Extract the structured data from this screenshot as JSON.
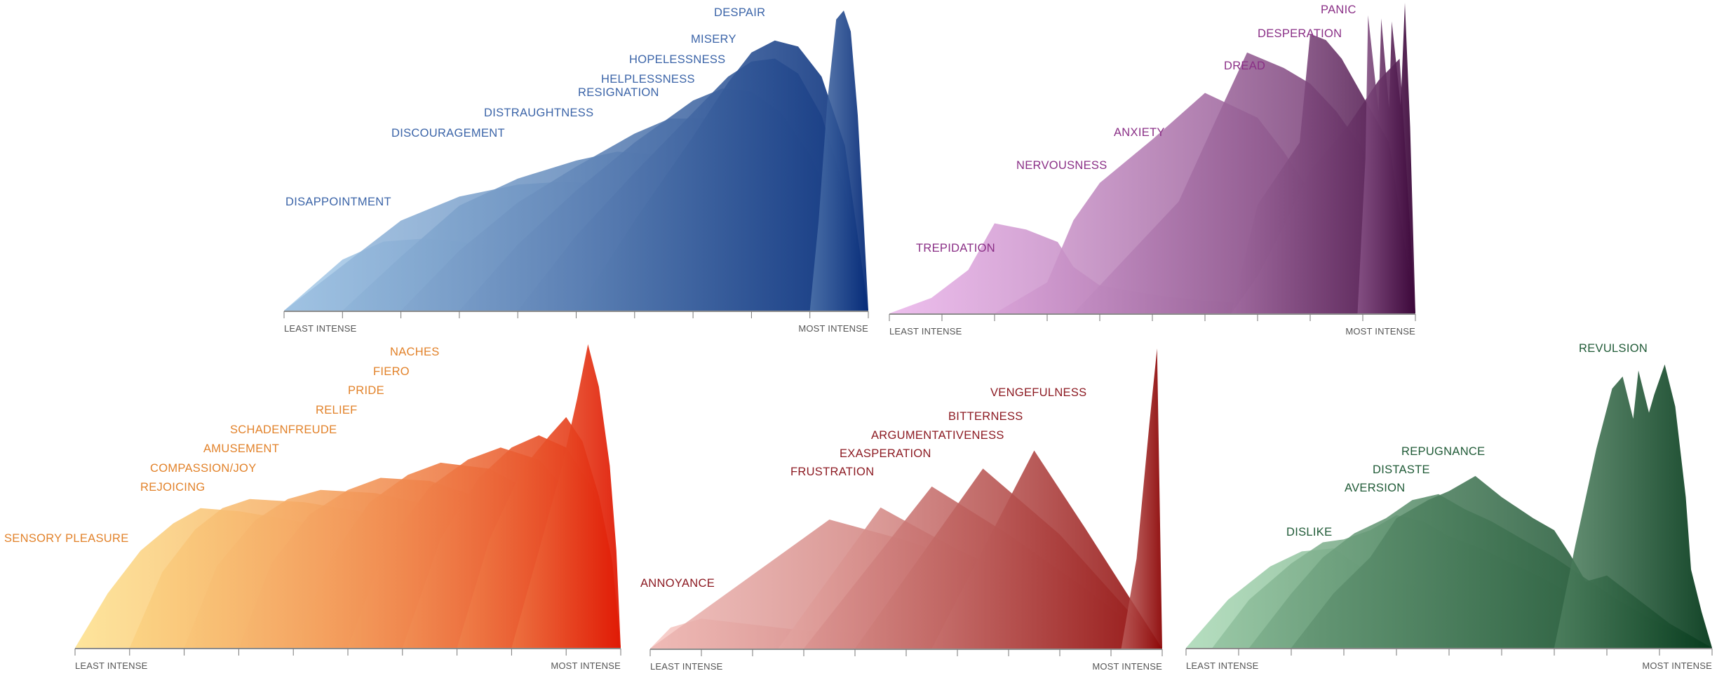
{
  "chart_data": [
    {
      "type": "area",
      "key": "sadness",
      "colors": [
        "#a9cdea",
        "#062b78"
      ],
      "label_color": "#3b64a8",
      "axis_start": "LEAST INTENSE",
      "axis_end": "MOST INTENSE",
      "x_range": [
        0,
        10
      ],
      "y_range": [
        0,
        10
      ],
      "series": [
        {
          "name": "DISAPPOINTMENT",
          "x": [
            0.0,
            1.0,
            1.7,
            2.4,
            3.0,
            4.0,
            5.0,
            6.0,
            7.0,
            8.0,
            9.0,
            10.0
          ],
          "y": [
            0.0,
            1.7,
            2.3,
            2.4,
            2.3,
            2.0,
            1.7,
            1.3,
            0.9,
            0.6,
            0.3,
            0.0
          ]
        },
        {
          "name": "DISCOURAGEMENT",
          "x": [
            0.0,
            1.0,
            2.0,
            3.0,
            4.0,
            4.8,
            5.5,
            6.5,
            7.5,
            8.5,
            9.3,
            10.0
          ],
          "y": [
            0.0,
            1.5,
            3.0,
            3.8,
            4.2,
            4.3,
            4.2,
            3.6,
            2.8,
            1.8,
            0.9,
            0.0
          ]
        },
        {
          "name": "DISTRAUGHTNESS",
          "x": [
            1.0,
            2.0,
            3.0,
            4.0,
            5.0,
            5.7,
            6.4,
            7.2,
            8.0,
            8.8,
            9.5,
            10.0
          ],
          "y": [
            0.0,
            1.8,
            3.5,
            4.4,
            5.0,
            5.3,
            5.2,
            4.6,
            3.8,
            2.6,
            1.3,
            0.0
          ]
        },
        {
          "name": "RESIGNATION",
          "x": [
            2.0,
            3.0,
            4.0,
            5.0,
            6.0,
            6.6,
            7.2,
            7.8,
            8.5,
            9.1,
            9.6,
            10.0
          ],
          "y": [
            0.0,
            2.0,
            3.6,
            4.8,
            5.9,
            6.4,
            6.4,
            5.9,
            4.9,
            3.5,
            1.8,
            0.0
          ]
        },
        {
          "name": "HELPLESSNESS",
          "x": [
            3.0,
            4.0,
            5.0,
            6.0,
            7.0,
            7.5,
            8.0,
            8.5,
            9.0,
            9.5,
            10.0
          ],
          "y": [
            0.0,
            2.2,
            4.0,
            5.6,
            7.0,
            7.4,
            7.3,
            6.6,
            5.2,
            3.0,
            0.0
          ]
        },
        {
          "name": "HOPELESSNESS",
          "x": [
            4.0,
            5.0,
            6.0,
            7.0,
            7.6,
            8.0,
            8.4,
            8.8,
            9.2,
            9.6,
            10.0
          ],
          "y": [
            0.0,
            2.5,
            4.6,
            6.6,
            7.8,
            8.3,
            8.4,
            7.9,
            6.5,
            4.0,
            0.0
          ]
        },
        {
          "name": "MISERY",
          "x": [
            5.0,
            6.0,
            7.0,
            7.6,
            8.0,
            8.4,
            8.8,
            9.2,
            9.6,
            10.0
          ],
          "y": [
            0.0,
            3.0,
            5.8,
            7.6,
            8.6,
            9.0,
            8.8,
            7.8,
            5.5,
            0.0
          ]
        },
        {
          "name": "DESPAIR",
          "x": [
            9.0,
            9.15,
            9.3,
            9.45,
            9.58,
            9.7,
            9.82,
            9.92,
            10.0
          ],
          "y": [
            0.0,
            3.0,
            7.0,
            9.7,
            10.0,
            9.3,
            6.5,
            3.0,
            0.0
          ]
        }
      ]
    },
    {
      "type": "area",
      "key": "fear",
      "colors": [
        "#eab3ea",
        "#3a0638"
      ],
      "label_color": "#8a2f86",
      "axis_start": "LEAST INTENSE",
      "axis_end": "MOST INTENSE",
      "x_range": [
        0,
        10
      ],
      "y_range": [
        0,
        10
      ],
      "series": [
        {
          "name": "TREPIDATION",
          "x": [
            0.0,
            0.8,
            1.5,
            2.0,
            2.6,
            3.2,
            3.5,
            4.0,
            5.0,
            6.0,
            7.0,
            8.0,
            9.0,
            10.0
          ],
          "y": [
            0.0,
            0.5,
            1.4,
            2.9,
            2.7,
            2.3,
            1.5,
            0.9,
            0.6,
            0.4,
            0.3,
            0.2,
            0.1,
            0.0
          ]
        },
        {
          "name": "NERVOUSNESS",
          "x": [
            2.0,
            3.0,
            3.5,
            4.0,
            5.0,
            6.0,
            7.0,
            7.5,
            8.0,
            8.5,
            9.0,
            10.0
          ],
          "y": [
            0.0,
            1.0,
            3.0,
            4.2,
            5.6,
            7.1,
            6.3,
            5.2,
            3.9,
            2.5,
            1.3,
            0.0
          ]
        },
        {
          "name": "ANXIETY",
          "x": [
            3.5,
            4.5,
            5.5,
            6.2,
            6.8,
            7.5,
            8.0,
            8.5,
            9.0,
            10.0
          ],
          "y": [
            0.0,
            1.8,
            3.6,
            6.2,
            8.4,
            7.9,
            7.4,
            6.5,
            5.3,
            0.0
          ]
        },
        {
          "name": "DREAD",
          "x": [
            6.5,
            7.0,
            7.5,
            8.0,
            8.7,
            9.3,
            9.7,
            10.0
          ],
          "y": [
            0.0,
            1.2,
            2.8,
            4.6,
            6.0,
            7.5,
            8.2,
            0.0
          ]
        },
        {
          "name": "DESPERATION",
          "x": [
            6.5,
            7.0,
            7.8,
            8.0,
            8.3,
            8.6,
            8.9,
            9.2,
            9.5,
            10.0
          ],
          "y": [
            0.0,
            3.5,
            5.5,
            9.0,
            8.8,
            8.2,
            7.3,
            6.4,
            5.5,
            0.0
          ]
        },
        {
          "name": "PANIC",
          "x": [
            8.9,
            9.05,
            9.1,
            9.3,
            9.35,
            9.5,
            9.55,
            9.72,
            9.8,
            9.9,
            10.0
          ],
          "y": [
            0.0,
            5.0,
            9.6,
            6.5,
            9.5,
            6.6,
            9.4,
            6.7,
            10.0,
            6.0,
            0.0
          ]
        }
      ]
    },
    {
      "type": "area",
      "key": "enjoyment",
      "colors": [
        "#fde08a",
        "#e01a05"
      ],
      "label_color": "#e2822a",
      "axis_start": "LEAST INTENSE",
      "axis_end": "MOST INTENSE",
      "x_range": [
        0,
        10
      ],
      "y_range": [
        0,
        10
      ],
      "series": [
        {
          "name": "SENSORY PLEASURE",
          "x": [
            0.0,
            0.6,
            1.2,
            1.8,
            2.3,
            3.0,
            4.0,
            5.0,
            6.0,
            7.0,
            8.0,
            9.0,
            9.6,
            10.0
          ],
          "y": [
            0.0,
            1.8,
            3.2,
            4.1,
            4.6,
            4.5,
            4.2,
            3.8,
            3.3,
            2.7,
            2.0,
            1.2,
            0.6,
            0.0
          ]
        },
        {
          "name": "REJOICING",
          "x": [
            1.0,
            1.6,
            2.2,
            2.7,
            3.2,
            4.2,
            5.2,
            6.2,
            7.2,
            8.2,
            9.0,
            9.6,
            10.0
          ],
          "y": [
            0.0,
            2.5,
            3.9,
            4.6,
            4.9,
            4.8,
            4.5,
            4.0,
            3.4,
            2.6,
            1.8,
            0.9,
            0.0
          ]
        },
        {
          "name": "COMPASSION/JOY",
          "x": [
            2.0,
            2.6,
            3.3,
            3.9,
            4.5,
            5.5,
            6.5,
            7.5,
            8.5,
            9.2,
            9.7,
            10.0
          ],
          "y": [
            0.0,
            2.7,
            4.2,
            4.9,
            5.2,
            5.1,
            4.7,
            4.0,
            3.0,
            2.0,
            1.0,
            0.0
          ]
        },
        {
          "name": "AMUSEMENT",
          "x": [
            3.0,
            3.6,
            4.3,
            5.0,
            5.6,
            6.5,
            7.5,
            8.5,
            9.2,
            9.7,
            10.0
          ],
          "y": [
            0.0,
            2.8,
            4.4,
            5.2,
            5.6,
            5.5,
            4.9,
            3.9,
            2.7,
            1.4,
            0.0
          ]
        },
        {
          "name": "SCHADENFREUDE",
          "x": [
            4.0,
            4.7,
            5.4,
            6.1,
            6.7,
            7.6,
            8.5,
            9.2,
            9.7,
            10.0
          ],
          "y": [
            0.0,
            3.0,
            4.8,
            5.7,
            6.1,
            5.9,
            5.0,
            3.6,
            2.0,
            0.0
          ]
        },
        {
          "name": "RELIEF",
          "x": [
            5.0,
            5.7,
            6.5,
            7.2,
            7.8,
            8.5,
            9.2,
            9.7,
            10.0
          ],
          "y": [
            0.0,
            3.4,
            5.3,
            6.2,
            6.6,
            6.2,
            4.8,
            2.6,
            0.0
          ]
        },
        {
          "name": "PRIDE",
          "x": [
            6.0,
            6.7,
            7.4,
            8.0,
            8.5,
            9.0,
            9.5,
            9.8,
            10.0
          ],
          "y": [
            0.0,
            3.6,
            5.6,
            6.6,
            7.0,
            6.6,
            5.2,
            3.2,
            0.0
          ]
        },
        {
          "name": "FIERO",
          "x": [
            7.0,
            7.6,
            8.2,
            8.7,
            9.0,
            9.3,
            9.6,
            9.85,
            10.0
          ],
          "y": [
            0.0,
            3.6,
            5.9,
            7.0,
            7.6,
            6.8,
            5.0,
            2.8,
            0.0
          ]
        },
        {
          "name": "NACHES",
          "x": [
            8.0,
            8.5,
            8.9,
            9.2,
            9.4,
            9.6,
            9.8,
            9.92,
            10.0
          ],
          "y": [
            0.0,
            3.2,
            5.8,
            8.2,
            10.0,
            8.6,
            6.0,
            3.2,
            0.0
          ]
        }
      ]
    },
    {
      "type": "area",
      "key": "anger",
      "colors": [
        "#f7c9c4",
        "#8c0606"
      ],
      "label_color": "#8c1a22",
      "axis_start": "LEAST INTENSE",
      "axis_end": "MOST INTENSE",
      "x_range": [
        0,
        10
      ],
      "y_range": [
        0,
        10
      ],
      "series": [
        {
          "name": "ANNOYANCE",
          "x": [
            0.0,
            0.4,
            1.0,
            2.0,
            3.0,
            4.0,
            5.0,
            6.0,
            7.0,
            8.0,
            9.0,
            10.0
          ],
          "y": [
            0.0,
            0.7,
            1.0,
            0.8,
            0.6,
            0.5,
            0.4,
            0.3,
            0.2,
            0.1,
            0.05,
            0.0
          ]
        },
        {
          "name": "FRUSTRATION",
          "x": [
            0.0,
            3.5,
            5.0,
            6.5,
            8.0,
            10.0
          ],
          "y": [
            0.0,
            4.3,
            3.6,
            2.7,
            1.8,
            0.0
          ]
        },
        {
          "name": "EXASPERATION",
          "x": [
            2.5,
            4.5,
            6.0,
            7.5,
            10.0
          ],
          "y": [
            0.0,
            4.7,
            3.3,
            2.1,
            0.0
          ]
        },
        {
          "name": "ARGUMENTATIVENESS",
          "x": [
            3.0,
            5.5,
            7.0,
            8.5,
            10.0
          ],
          "y": [
            0.0,
            5.4,
            3.8,
            2.0,
            0.0
          ]
        },
        {
          "name": "BITTERNESS",
          "x": [
            4.0,
            6.5,
            8.0,
            10.0
          ],
          "y": [
            0.0,
            6.0,
            3.8,
            0.0
          ]
        },
        {
          "name": "VENGEFULNESS",
          "x": [
            5.5,
            7.5,
            8.5,
            10.0
          ],
          "y": [
            0.0,
            6.6,
            4.0,
            0.0
          ]
        },
        {
          "name": "",
          "x": [
            9.2,
            9.5,
            9.75,
            9.9,
            10.0
          ],
          "y": [
            0.0,
            3.0,
            7.5,
            10.0,
            0.0
          ]
        }
      ]
    },
    {
      "type": "area",
      "key": "disgust",
      "colors": [
        "#a8d8b4",
        "#063a1c"
      ],
      "label_color": "#1f5a36",
      "axis_start": "LEAST INTENSE",
      "axis_end": "MOST INTENSE",
      "x_range": [
        0,
        10
      ],
      "y_range": [
        0,
        10
      ],
      "series": [
        {
          "name": "DISLIKE",
          "x": [
            0.0,
            0.8,
            1.6,
            2.2,
            2.8,
            3.3,
            3.8,
            4.4,
            5.0,
            5.6,
            6.2,
            6.8,
            7.4,
            8.0,
            8.6,
            9.2,
            10.0
          ],
          "y": [
            0.0,
            1.6,
            2.7,
            3.2,
            3.3,
            2.7,
            2.3,
            2.0,
            1.7,
            1.5,
            1.3,
            1.1,
            0.9,
            0.7,
            0.5,
            0.3,
            0.0
          ]
        },
        {
          "name": "AVERSION",
          "x": [
            0.5,
            1.2,
            2.0,
            2.6,
            3.0,
            3.5,
            4.0,
            4.5,
            5.0,
            5.6,
            6.2,
            6.8,
            7.4,
            8.0,
            8.8,
            10.0
          ],
          "y": [
            0.0,
            1.6,
            2.8,
            3.5,
            3.6,
            3.9,
            4.4,
            4.2,
            3.7,
            3.3,
            2.8,
            2.3,
            1.7,
            1.1,
            0.6,
            0.0
          ]
        },
        {
          "name": "DISTASTE",
          "x": [
            1.2,
            2.0,
            2.6,
            3.2,
            3.8,
            4.3,
            4.8,
            5.3,
            5.8,
            6.4,
            7.0,
            7.6,
            8.2,
            8.8,
            9.4,
            10.0
          ],
          "y": [
            0.0,
            1.8,
            3.0,
            3.8,
            4.3,
            4.9,
            5.1,
            4.6,
            4.2,
            3.6,
            3.0,
            2.3,
            1.6,
            1.0,
            0.5,
            0.0
          ]
        },
        {
          "name": "REPUGNANCE",
          "x": [
            2.0,
            2.8,
            3.5,
            4.0,
            4.6,
            5.0,
            5.5,
            6.0,
            6.6,
            7.0,
            7.3,
            7.6,
            8.0,
            8.6,
            9.2,
            10.0
          ],
          "y": [
            0.0,
            1.8,
            3.0,
            4.3,
            4.9,
            5.2,
            5.7,
            5.0,
            4.3,
            3.9,
            3.1,
            2.2,
            2.4,
            1.6,
            0.8,
            0.0
          ]
        },
        {
          "name": "REVULSION",
          "x": [
            7.0,
            7.4,
            7.8,
            8.1,
            8.3,
            8.5,
            8.6,
            8.8,
            8.9,
            9.1,
            9.3,
            9.5,
            9.6,
            9.8,
            10.0
          ],
          "y": [
            0.0,
            3.4,
            6.6,
            8.6,
            9.0,
            7.6,
            9.2,
            7.8,
            8.4,
            9.4,
            8.0,
            5.0,
            2.6,
            1.2,
            0.0
          ]
        }
      ]
    }
  ]
}
